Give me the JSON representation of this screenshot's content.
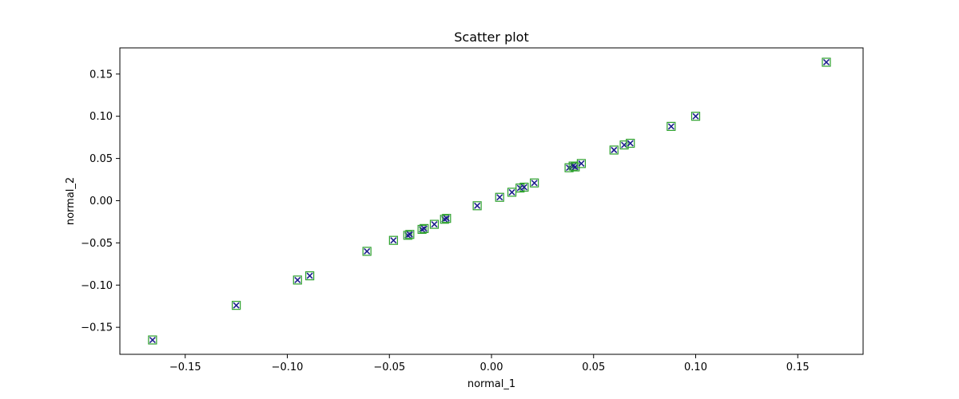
{
  "chart_data": {
    "type": "scatter",
    "title": "Scatter plot",
    "xlabel": "normal_1",
    "ylabel": "normal_2",
    "xlim": [
      -0.182,
      0.182
    ],
    "ylim": [
      -0.182,
      0.181
    ],
    "grid": false,
    "xticks": [
      -0.15,
      -0.1,
      -0.05,
      0.0,
      0.05,
      0.1,
      0.15
    ],
    "xtick_labels": [
      "−0.15",
      "−0.10",
      "−0.05",
      "0.00",
      "0.05",
      "0.10",
      "0.15"
    ],
    "yticks": [
      -0.15,
      -0.1,
      -0.05,
      0.0,
      0.05,
      0.1,
      0.15
    ],
    "ytick_labels": [
      "−0.15",
      "−0.10",
      "−0.05",
      "0.00",
      "0.05",
      "0.10",
      "0.15"
    ],
    "marker_colors": {
      "square": "#2ca02c",
      "cross": "#1f1f8f"
    },
    "points": [
      {
        "x": -0.166,
        "y": -0.165
      },
      {
        "x": -0.125,
        "y": -0.124
      },
      {
        "x": -0.095,
        "y": -0.094
      },
      {
        "x": -0.089,
        "y": -0.089
      },
      {
        "x": -0.061,
        "y": -0.06
      },
      {
        "x": -0.048,
        "y": -0.047
      },
      {
        "x": -0.041,
        "y": -0.041
      },
      {
        "x": -0.04,
        "y": -0.04
      },
      {
        "x": -0.034,
        "y": -0.034
      },
      {
        "x": -0.033,
        "y": -0.033
      },
      {
        "x": -0.028,
        "y": -0.028
      },
      {
        "x": -0.023,
        "y": -0.022
      },
      {
        "x": -0.022,
        "y": -0.021
      },
      {
        "x": -0.007,
        "y": -0.006
      },
      {
        "x": 0.004,
        "y": 0.004
      },
      {
        "x": 0.01,
        "y": 0.01
      },
      {
        "x": 0.014,
        "y": 0.015
      },
      {
        "x": 0.016,
        "y": 0.016
      },
      {
        "x": 0.021,
        "y": 0.021
      },
      {
        "x": 0.038,
        "y": 0.039
      },
      {
        "x": 0.04,
        "y": 0.041
      },
      {
        "x": 0.041,
        "y": 0.04
      },
      {
        "x": 0.044,
        "y": 0.044
      },
      {
        "x": 0.06,
        "y": 0.06
      },
      {
        "x": 0.065,
        "y": 0.066
      },
      {
        "x": 0.068,
        "y": 0.068
      },
      {
        "x": 0.088,
        "y": 0.088
      },
      {
        "x": 0.1,
        "y": 0.1
      },
      {
        "x": 0.164,
        "y": 0.164
      }
    ]
  }
}
